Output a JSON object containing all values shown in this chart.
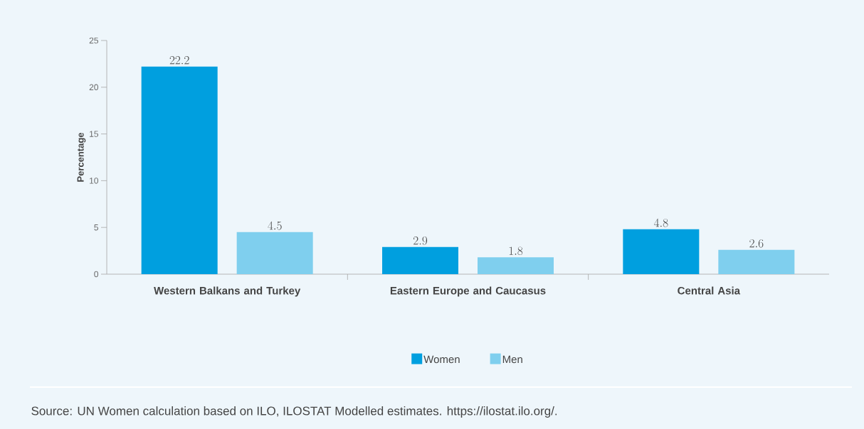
{
  "chart_data": {
    "type": "bar",
    "categories": [
      "Western Balkans and Turkey",
      "Eastern Europe and Caucasus",
      "Central Asia"
    ],
    "series": [
      {
        "name": "Women",
        "color": "#009fdf",
        "values": [
          22.2,
          2.9,
          4.8
        ]
      },
      {
        "name": "Men",
        "color": "#7fcfee",
        "values": [
          4.5,
          1.8,
          2.6
        ]
      }
    ],
    "ylabel": "Percentage",
    "ylim": [
      0,
      25
    ],
    "yticks": [
      0,
      5,
      10,
      15,
      20,
      25
    ],
    "data_labels": true,
    "legend": "bottom",
    "grid": false,
    "annotations": [
      "Source: UN Women calculation based on ILO, ILOSTAT Modelled estimates. https://ilostat.ilo.org/."
    ]
  }
}
